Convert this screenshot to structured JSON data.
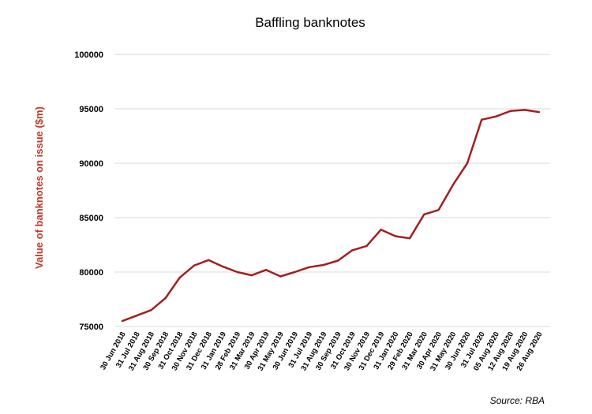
{
  "chart_data": {
    "type": "line",
    "title": "Baffling banknotes",
    "xlabel": "",
    "ylabel": "Value of banknotes on issue ($m)",
    "source": "Source: RBA",
    "ylim": [
      75000,
      100000
    ],
    "yticks": [
      "100000",
      "95000",
      "90000",
      "85000",
      "80000",
      "75000"
    ],
    "ytick_values": [
      100000,
      95000,
      90000,
      85000,
      80000,
      75000
    ],
    "grid": true,
    "legend": "none",
    "line_color": "#a31f1f",
    "ylabel_color": "#c0392b",
    "x": [
      "30 Jun 2018",
      "31 Jul 2018",
      "31 Aug 2018",
      "30 Sep 2018",
      "31 Oct 2018",
      "30 Nov 2018",
      "31 Dec 2018",
      "31 Jan 2019",
      "28 Feb 2019",
      "31 Mar 2019",
      "30 Apr 2019",
      "31 May 2019",
      "30 Jun 2019",
      "31 Jul 2019",
      "31 Aug 2019",
      "30 Sep 2019",
      "31 Oct 2019",
      "30 Nov 2019",
      "31 Dec 2019",
      "31 Jan 2020",
      "29 Feb 2020",
      "31 Mar 2020",
      "30 Apr 2020",
      "31 May 2020",
      "30 Jun 2020",
      "31 Jul 2020",
      "05 Aug 2020",
      "12 Aug 2020",
      "19 Aug 2020",
      "26 Aug 2020"
    ],
    "series": [
      {
        "values": [
          75500,
          76000,
          76500,
          77600,
          79500,
          80600,
          81100,
          80500,
          80000,
          79700,
          80200,
          79600,
          80000,
          80450,
          80650,
          81050,
          82000,
          82400,
          83900,
          83300,
          83100,
          85300,
          85700,
          88000,
          90000,
          94000,
          94300,
          94800,
          94900,
          94700
        ]
      }
    ]
  }
}
